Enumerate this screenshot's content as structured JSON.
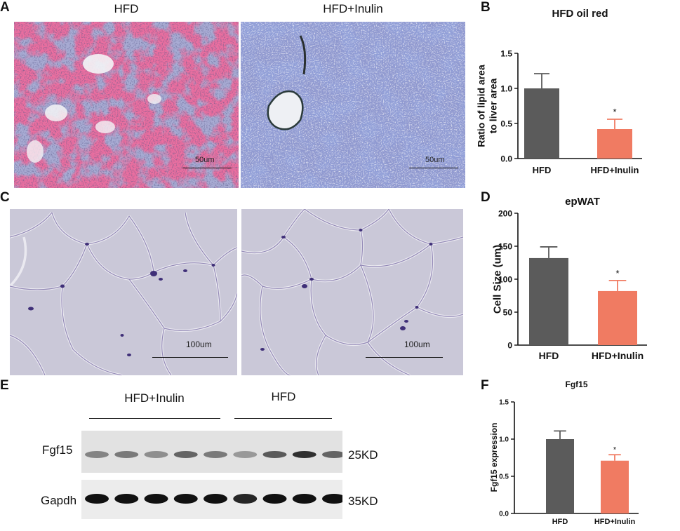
{
  "panels": {
    "A": {
      "label": "A",
      "left_title": "HFD",
      "right_title": "HFD+Inulin",
      "scale_left": "50um",
      "scale_right": "50um"
    },
    "C": {
      "label": "C",
      "scale_left": "100um",
      "scale_right": "100um"
    },
    "E": {
      "label": "E",
      "group_left": "HFD+Inulin",
      "group_right": "HFD",
      "row1_label": "Fgf15",
      "row2_label": "Gapdh",
      "row1_size": "25KD",
      "row2_size": "35KD",
      "row1_intensity": [
        0.45,
        0.5,
        0.4,
        0.6,
        0.5,
        0.35,
        0.65,
        0.85,
        0.6
      ],
      "row2_intensity": [
        1,
        1,
        1,
        1,
        1,
        0.9,
        1,
        1,
        1
      ]
    },
    "B": {
      "label": "B"
    },
    "D": {
      "label": "D"
    },
    "F": {
      "label": "F"
    }
  },
  "colors": {
    "hfd": "#5b5b5b",
    "inulin": "#f07b62",
    "oilred_stain": "#d4285a",
    "hematoxylin": "#4a5aae",
    "adipose_bg": "#c9c7d6"
  },
  "chart_data": [
    {
      "id": "B",
      "type": "bar",
      "title": "HFD oil red",
      "ylabel": "Ratio of lipid area\nto liver area",
      "ylabel_lines": [
        "Ratio of lipid area",
        "to liver area"
      ],
      "categories": [
        "HFD",
        "HFD+Inulin"
      ],
      "values": [
        1.0,
        0.42
      ],
      "errors": [
        0.21,
        0.14
      ],
      "significance": [
        "",
        "*"
      ],
      "ylim": [
        0,
        1.5
      ],
      "yticks": [
        0.0,
        0.5,
        1.0,
        1.5
      ],
      "ytick_labels": [
        "0.0",
        "0.5",
        "1.0",
        "1.5"
      ],
      "colors": [
        "#5b5b5b",
        "#f07b62"
      ]
    },
    {
      "id": "D",
      "type": "bar",
      "title": "epWAT",
      "ylabel": "Cell Size (um)",
      "ylabel_lines": [
        "Cell Size (um)"
      ],
      "categories": [
        "HFD",
        "HFD+Inulin"
      ],
      "values": [
        132,
        82
      ],
      "errors": [
        17,
        16
      ],
      "significance": [
        "",
        "*"
      ],
      "ylim": [
        0,
        200
      ],
      "yticks": [
        0,
        50,
        100,
        150,
        200
      ],
      "ytick_labels": [
        "0",
        "50",
        "100",
        "150",
        "200"
      ],
      "colors": [
        "#5b5b5b",
        "#f07b62"
      ]
    },
    {
      "id": "F",
      "type": "bar",
      "title": "Fgf15",
      "ylabel": "Fgf15 expression",
      "ylabel_lines": [
        "Fgf15 expression"
      ],
      "categories": [
        "HFD",
        "HFD+Inulin"
      ],
      "values": [
        1.0,
        0.71
      ],
      "errors": [
        0.11,
        0.08
      ],
      "significance": [
        "",
        "*"
      ],
      "ylim": [
        0,
        1.5
      ],
      "yticks": [
        0.0,
        0.5,
        1.0,
        1.5
      ],
      "ytick_labels": [
        "0.0",
        "0.5",
        "1.0",
        "1.5"
      ],
      "colors": [
        "#5b5b5b",
        "#f07b62"
      ]
    }
  ]
}
